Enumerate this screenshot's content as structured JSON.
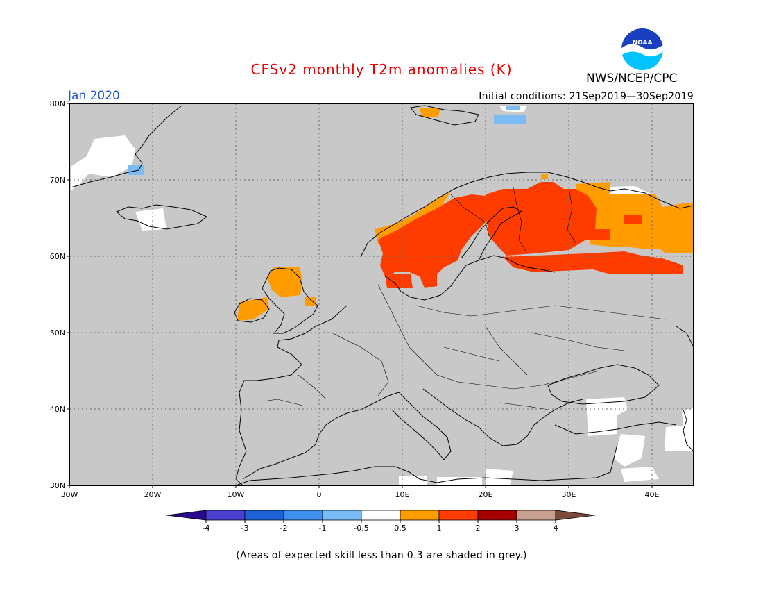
{
  "title": "CFSv2 monthly T2m anomalies (K)",
  "month_label": "Jan 2020",
  "initial_conditions": "Initial conditions: 21Sep2019—30Sep2019",
  "agency": "NWS/NCEP/CPC",
  "logo": {
    "icon": "noaa-logo-icon",
    "text": "NOAA"
  },
  "footnote": "(Areas of expected skill less than 0.3 are shaded in grey.)",
  "map": {
    "lon_range": [
      -30,
      45
    ],
    "lat_range": [
      30,
      80
    ],
    "lat_labels": [
      "30N",
      "40N",
      "50N",
      "60N",
      "70N",
      "80N"
    ],
    "lon_labels": [
      "30W",
      "20W",
      "10W",
      "0",
      "10E",
      "20E",
      "30E",
      "40E"
    ],
    "grid": "dotted",
    "background_color": "#c8c8c8"
  },
  "colorbar": {
    "labels": [
      "-4",
      "-3",
      "-2",
      "-1",
      "-0.5",
      "0.5",
      "1",
      "2",
      "3",
      "4"
    ],
    "colors": [
      "#2a0a8c",
      "#4a3fcf",
      "#1e63d6",
      "#3f8ff0",
      "#7cbcf5",
      "#ffffff",
      "#ff9d00",
      "#ff3c00",
      "#a30000",
      "#c8a08f",
      "#7a4a3a"
    ]
  }
}
